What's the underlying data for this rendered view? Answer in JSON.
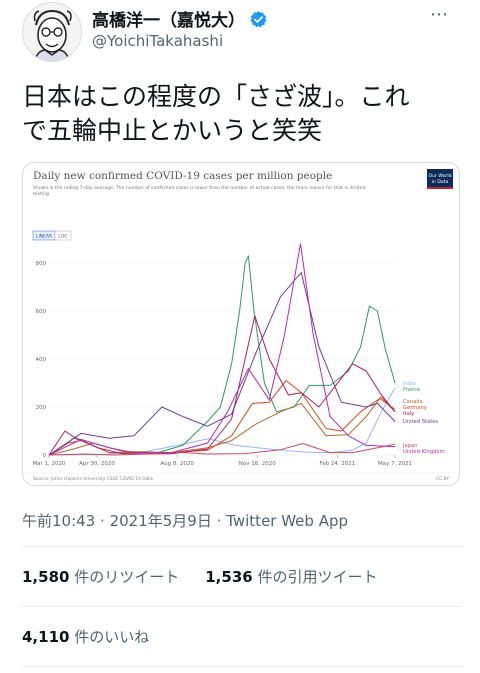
{
  "user": {
    "display_name": "高橋洋一（嘉悦大）",
    "handle": "@YoichiTakahashi"
  },
  "tweet": {
    "line1": "日本はこの程度の「さざ波」。これ",
    "line2": "で五輪中止とかいうと笑笑",
    "time": "午前10:43",
    "date": "2021年5月9日",
    "source": "Twitter Web App",
    "sep": "·"
  },
  "stats": {
    "retweets": "1,580",
    "retweets_label": "件のリツイート",
    "quotes": "1,536",
    "quotes_label": "件の引用ツイート",
    "likes": "4,110",
    "likes_label": "件のいいね"
  },
  "colors": {
    "text": "#0f1419",
    "secondary": "#536471",
    "verified": "#1d9bf0",
    "owid_badge": "#0b2d5c",
    "owid_red": "#c0272d"
  },
  "chart_data": {
    "type": "line",
    "title": "Daily new confirmed COVID-19 cases per million people",
    "subtitle_line1": "Shown is the rolling 7-day average. The number of confirmed cases is lower than the number of actual cases; the main reason for that is limited",
    "subtitle_line2": "testing.",
    "toggle": [
      "LINEAR",
      "LOG"
    ],
    "badge_line1": "Our World",
    "badge_line2": "in Data",
    "source": "Source: Johns Hopkins University CSSE COVID-19 Data",
    "license": "CC BY",
    "ylim": [
      0,
      900
    ],
    "yticks": [
      0,
      200,
      400,
      600,
      800
    ],
    "x_start": "2020-03-01",
    "x_end": "2021-05-07",
    "xticks": [
      {
        "label": "Mar 1, 2020",
        "x": "2020-03-01"
      },
      {
        "label": "Apr 30, 2020",
        "x": "2020-04-30"
      },
      {
        "label": "Aug 8, 2020",
        "x": "2020-08-08"
      },
      {
        "label": "Nov 16, 2020",
        "x": "2020-11-16"
      },
      {
        "label": "Feb 24, 2021",
        "x": "2021-02-24"
      },
      {
        "label": "May 7, 2021",
        "x": "2021-05-07"
      }
    ],
    "series": [
      {
        "name": "India",
        "color": "#97b3ff",
        "points": [
          [
            "2020-03-01",
            0
          ],
          [
            "2020-05-01",
            1
          ],
          [
            "2020-07-01",
            15
          ],
          [
            "2020-08-15",
            45
          ],
          [
            "2020-09-16",
            68
          ],
          [
            "2020-10-20",
            40
          ],
          [
            "2020-12-01",
            25
          ],
          [
            "2021-01-15",
            12
          ],
          [
            "2021-02-15",
            9
          ],
          [
            "2021-03-15",
            20
          ],
          [
            "2021-04-01",
            50
          ],
          [
            "2021-04-20",
            180
          ],
          [
            "2021-05-07",
            280
          ]
        ]
      },
      {
        "name": "France",
        "color": "#2e9a5f",
        "points": [
          [
            "2020-03-01",
            0
          ],
          [
            "2020-03-20",
            40
          ],
          [
            "2020-04-01",
            70
          ],
          [
            "2020-04-15",
            55
          ],
          [
            "2020-05-15",
            10
          ],
          [
            "2020-07-15",
            10
          ],
          [
            "2020-08-15",
            40
          ],
          [
            "2020-09-15",
            140
          ],
          [
            "2020-10-01",
            200
          ],
          [
            "2020-10-15",
            380
          ],
          [
            "2020-10-25",
            600
          ],
          [
            "2020-11-01",
            800
          ],
          [
            "2020-11-05",
            830
          ],
          [
            "2020-11-12",
            600
          ],
          [
            "2020-11-25",
            300
          ],
          [
            "2020-12-10",
            180
          ],
          [
            "2021-01-01",
            200
          ],
          [
            "2021-01-20",
            290
          ],
          [
            "2021-02-15",
            290
          ],
          [
            "2021-03-10",
            350
          ],
          [
            "2021-03-25",
            450
          ],
          [
            "2021-04-05",
            620
          ],
          [
            "2021-04-15",
            600
          ],
          [
            "2021-04-25",
            440
          ],
          [
            "2021-05-07",
            300
          ]
        ]
      },
      {
        "name": "Canada",
        "color": "#b06a2c",
        "points": [
          [
            "2020-03-01",
            0
          ],
          [
            "2020-04-01",
            25
          ],
          [
            "2020-04-25",
            50
          ],
          [
            "2020-06-01",
            15
          ],
          [
            "2020-08-01",
            10
          ],
          [
            "2020-09-15",
            30
          ],
          [
            "2020-10-15",
            60
          ],
          [
            "2020-11-15",
            130
          ],
          [
            "2020-12-15",
            180
          ],
          [
            "2021-01-10",
            215
          ],
          [
            "2021-02-10",
            80
          ],
          [
            "2021-03-10",
            85
          ],
          [
            "2021-04-01",
            160
          ],
          [
            "2021-04-18",
            235
          ],
          [
            "2021-05-07",
            190
          ]
        ]
      },
      {
        "name": "Germany",
        "color": "#d04a1f",
        "points": [
          [
            "2020-03-01",
            0
          ],
          [
            "2020-03-25",
            50
          ],
          [
            "2020-04-10",
            60
          ],
          [
            "2020-05-15",
            10
          ],
          [
            "2020-08-01",
            10
          ],
          [
            "2020-09-15",
            20
          ],
          [
            "2020-10-15",
            80
          ],
          [
            "2020-11-10",
            215
          ],
          [
            "2020-12-01",
            220
          ],
          [
            "2020-12-22",
            310
          ],
          [
            "2021-01-10",
            260
          ],
          [
            "2021-02-10",
            110
          ],
          [
            "2021-03-01",
            100
          ],
          [
            "2021-03-25",
            180
          ],
          [
            "2021-04-20",
            240
          ],
          [
            "2021-05-07",
            180
          ]
        ]
      },
      {
        "name": "Italy",
        "color": "#b11a66",
        "points": [
          [
            "2020-03-01",
            0
          ],
          [
            "2020-03-21",
            100
          ],
          [
            "2020-04-01",
            75
          ],
          [
            "2020-05-01",
            30
          ],
          [
            "2020-06-01",
            5
          ],
          [
            "2020-08-01",
            5
          ],
          [
            "2020-09-15",
            25
          ],
          [
            "2020-10-15",
            150
          ],
          [
            "2020-11-13",
            580
          ],
          [
            "2020-12-01",
            400
          ],
          [
            "2020-12-25",
            250
          ],
          [
            "2021-01-10",
            260
          ],
          [
            "2021-02-01",
            200
          ],
          [
            "2021-03-15",
            380
          ],
          [
            "2021-04-01",
            350
          ],
          [
            "2021-04-20",
            250
          ],
          [
            "2021-05-07",
            180
          ]
        ]
      },
      {
        "name": "United States",
        "color": "#6d3e91",
        "points": [
          [
            "2020-03-01",
            0
          ],
          [
            "2020-04-10",
            90
          ],
          [
            "2020-05-15",
            70
          ],
          [
            "2020-06-15",
            80
          ],
          [
            "2020-07-20",
            200
          ],
          [
            "2020-08-15",
            160
          ],
          [
            "2020-09-15",
            120
          ],
          [
            "2020-10-15",
            170
          ],
          [
            "2020-11-15",
            430
          ],
          [
            "2020-12-15",
            660
          ],
          [
            "2021-01-10",
            760
          ],
          [
            "2021-02-01",
            450
          ],
          [
            "2021-03-01",
            220
          ],
          [
            "2021-04-01",
            200
          ],
          [
            "2021-04-15",
            215
          ],
          [
            "2021-05-07",
            140
          ]
        ]
      },
      {
        "name": "Japan",
        "color": "#c15065",
        "points": [
          [
            "2020-03-01",
            0
          ],
          [
            "2020-04-15",
            4
          ],
          [
            "2020-05-20",
            0
          ],
          [
            "2020-07-15",
            5
          ],
          [
            "2020-08-05",
            12
          ],
          [
            "2020-09-15",
            4
          ],
          [
            "2020-11-01",
            6
          ],
          [
            "2020-12-15",
            22
          ],
          [
            "2021-01-12",
            48
          ],
          [
            "2021-02-15",
            10
          ],
          [
            "2021-03-15",
            10
          ],
          [
            "2021-04-15",
            30
          ],
          [
            "2021-05-07",
            45
          ]
        ]
      },
      {
        "name": "United Kingdom",
        "color": "#b22db4",
        "points": [
          [
            "2020-03-01",
            0
          ],
          [
            "2020-04-10",
            65
          ],
          [
            "2020-05-15",
            30
          ],
          [
            "2020-06-15",
            10
          ],
          [
            "2020-08-01",
            10
          ],
          [
            "2020-09-15",
            50
          ],
          [
            "2020-10-10",
            180
          ],
          [
            "2020-11-05",
            360
          ],
          [
            "2020-12-01",
            230
          ],
          [
            "2020-12-20",
            500
          ],
          [
            "2021-01-09",
            880
          ],
          [
            "2021-01-25",
            500
          ],
          [
            "2021-02-15",
            160
          ],
          [
            "2021-03-10",
            80
          ],
          [
            "2021-04-01",
            40
          ],
          [
            "2021-05-07",
            35
          ]
        ]
      }
    ]
  }
}
